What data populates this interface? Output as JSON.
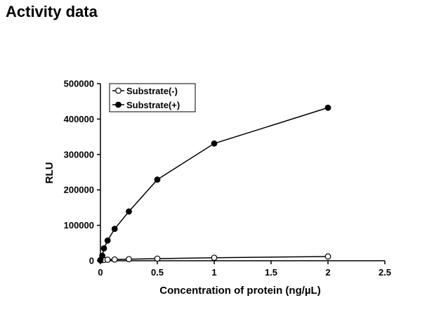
{
  "page": {
    "title": "Activity data"
  },
  "chart_data": {
    "type": "scatter",
    "title": "",
    "xlabel": "Concentration of protein (ng/µL)",
    "ylabel": "RLU",
    "xlim": [
      0,
      2.5
    ],
    "ylim": [
      0,
      500000
    ],
    "xticks": [
      0,
      0.5,
      1,
      1.5,
      2,
      2.5
    ],
    "xtick_labels": [
      "0",
      "0.5",
      "1",
      "1.5",
      "2",
      "2.5"
    ],
    "yticks": [
      0,
      100000,
      200000,
      300000,
      400000,
      500000
    ],
    "ytick_labels": [
      "0",
      "100000",
      "200000",
      "300000",
      "400000",
      "500000"
    ],
    "grid": false,
    "legend": "top-left",
    "series": [
      {
        "name": "Substrate(-)",
        "marker": "open-circle",
        "color": "#000000",
        "x": [
          0,
          0.016,
          0.031,
          0.063,
          0.125,
          0.25,
          0.5,
          1,
          2
        ],
        "y": [
          1500,
          2000,
          2500,
          3000,
          3500,
          4500,
          6000,
          8500,
          12000
        ]
      },
      {
        "name": "Substrate(+)",
        "marker": "filled-circle",
        "color": "#000000",
        "x": [
          0,
          0.016,
          0.031,
          0.063,
          0.125,
          0.25,
          0.5,
          1,
          2
        ],
        "y": [
          2000,
          14000,
          35000,
          57000,
          90000,
          139000,
          229000,
          331000,
          432000
        ]
      }
    ]
  }
}
